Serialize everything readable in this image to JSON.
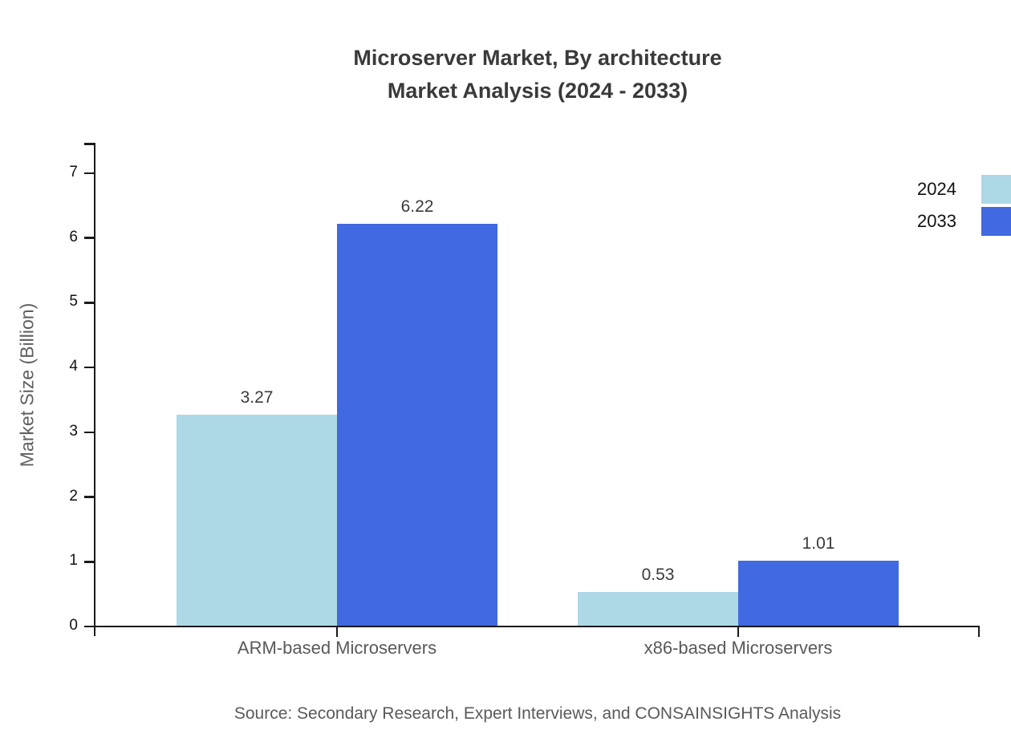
{
  "title": {
    "line1": "Microserver Market, By architecture",
    "line2": "Market Analysis (2024 - 2033)"
  },
  "source": "Source: Secondary Research, Expert Interviews, and CONSAINSIGHTS Analysis",
  "colors": {
    "series_2024": "#ADD8E6",
    "series_2033": "#4169E1",
    "axis": "#1a1a1a",
    "title_text": "#3a3a3a",
    "muted_text": "#5a5a5a"
  },
  "chart_data": {
    "type": "bar",
    "title": "Microserver Market, By architecture Market Analysis (2024 - 2033)",
    "categories": [
      "ARM-based Microservers",
      "x86-based Microservers"
    ],
    "series": [
      {
        "name": "2024",
        "color": "#ADD8E6",
        "values": [
          3.27,
          0.53
        ]
      },
      {
        "name": "2033",
        "color": "#4169E1",
        "values": [
          6.22,
          1.01
        ]
      }
    ],
    "value_labels": [
      [
        "3.27",
        "0.53"
      ],
      [
        "6.22",
        "1.01"
      ]
    ],
    "xlabel": "",
    "ylabel": "Market Size (Billion)",
    "y_ticks": [
      "0",
      "1",
      "2",
      "3",
      "4",
      "5",
      "6",
      "7"
    ],
    "ylim": [
      0,
      7.5
    ],
    "grid": false,
    "legend_position": "top-right",
    "legend_entries": [
      "2024",
      "2033"
    ]
  }
}
